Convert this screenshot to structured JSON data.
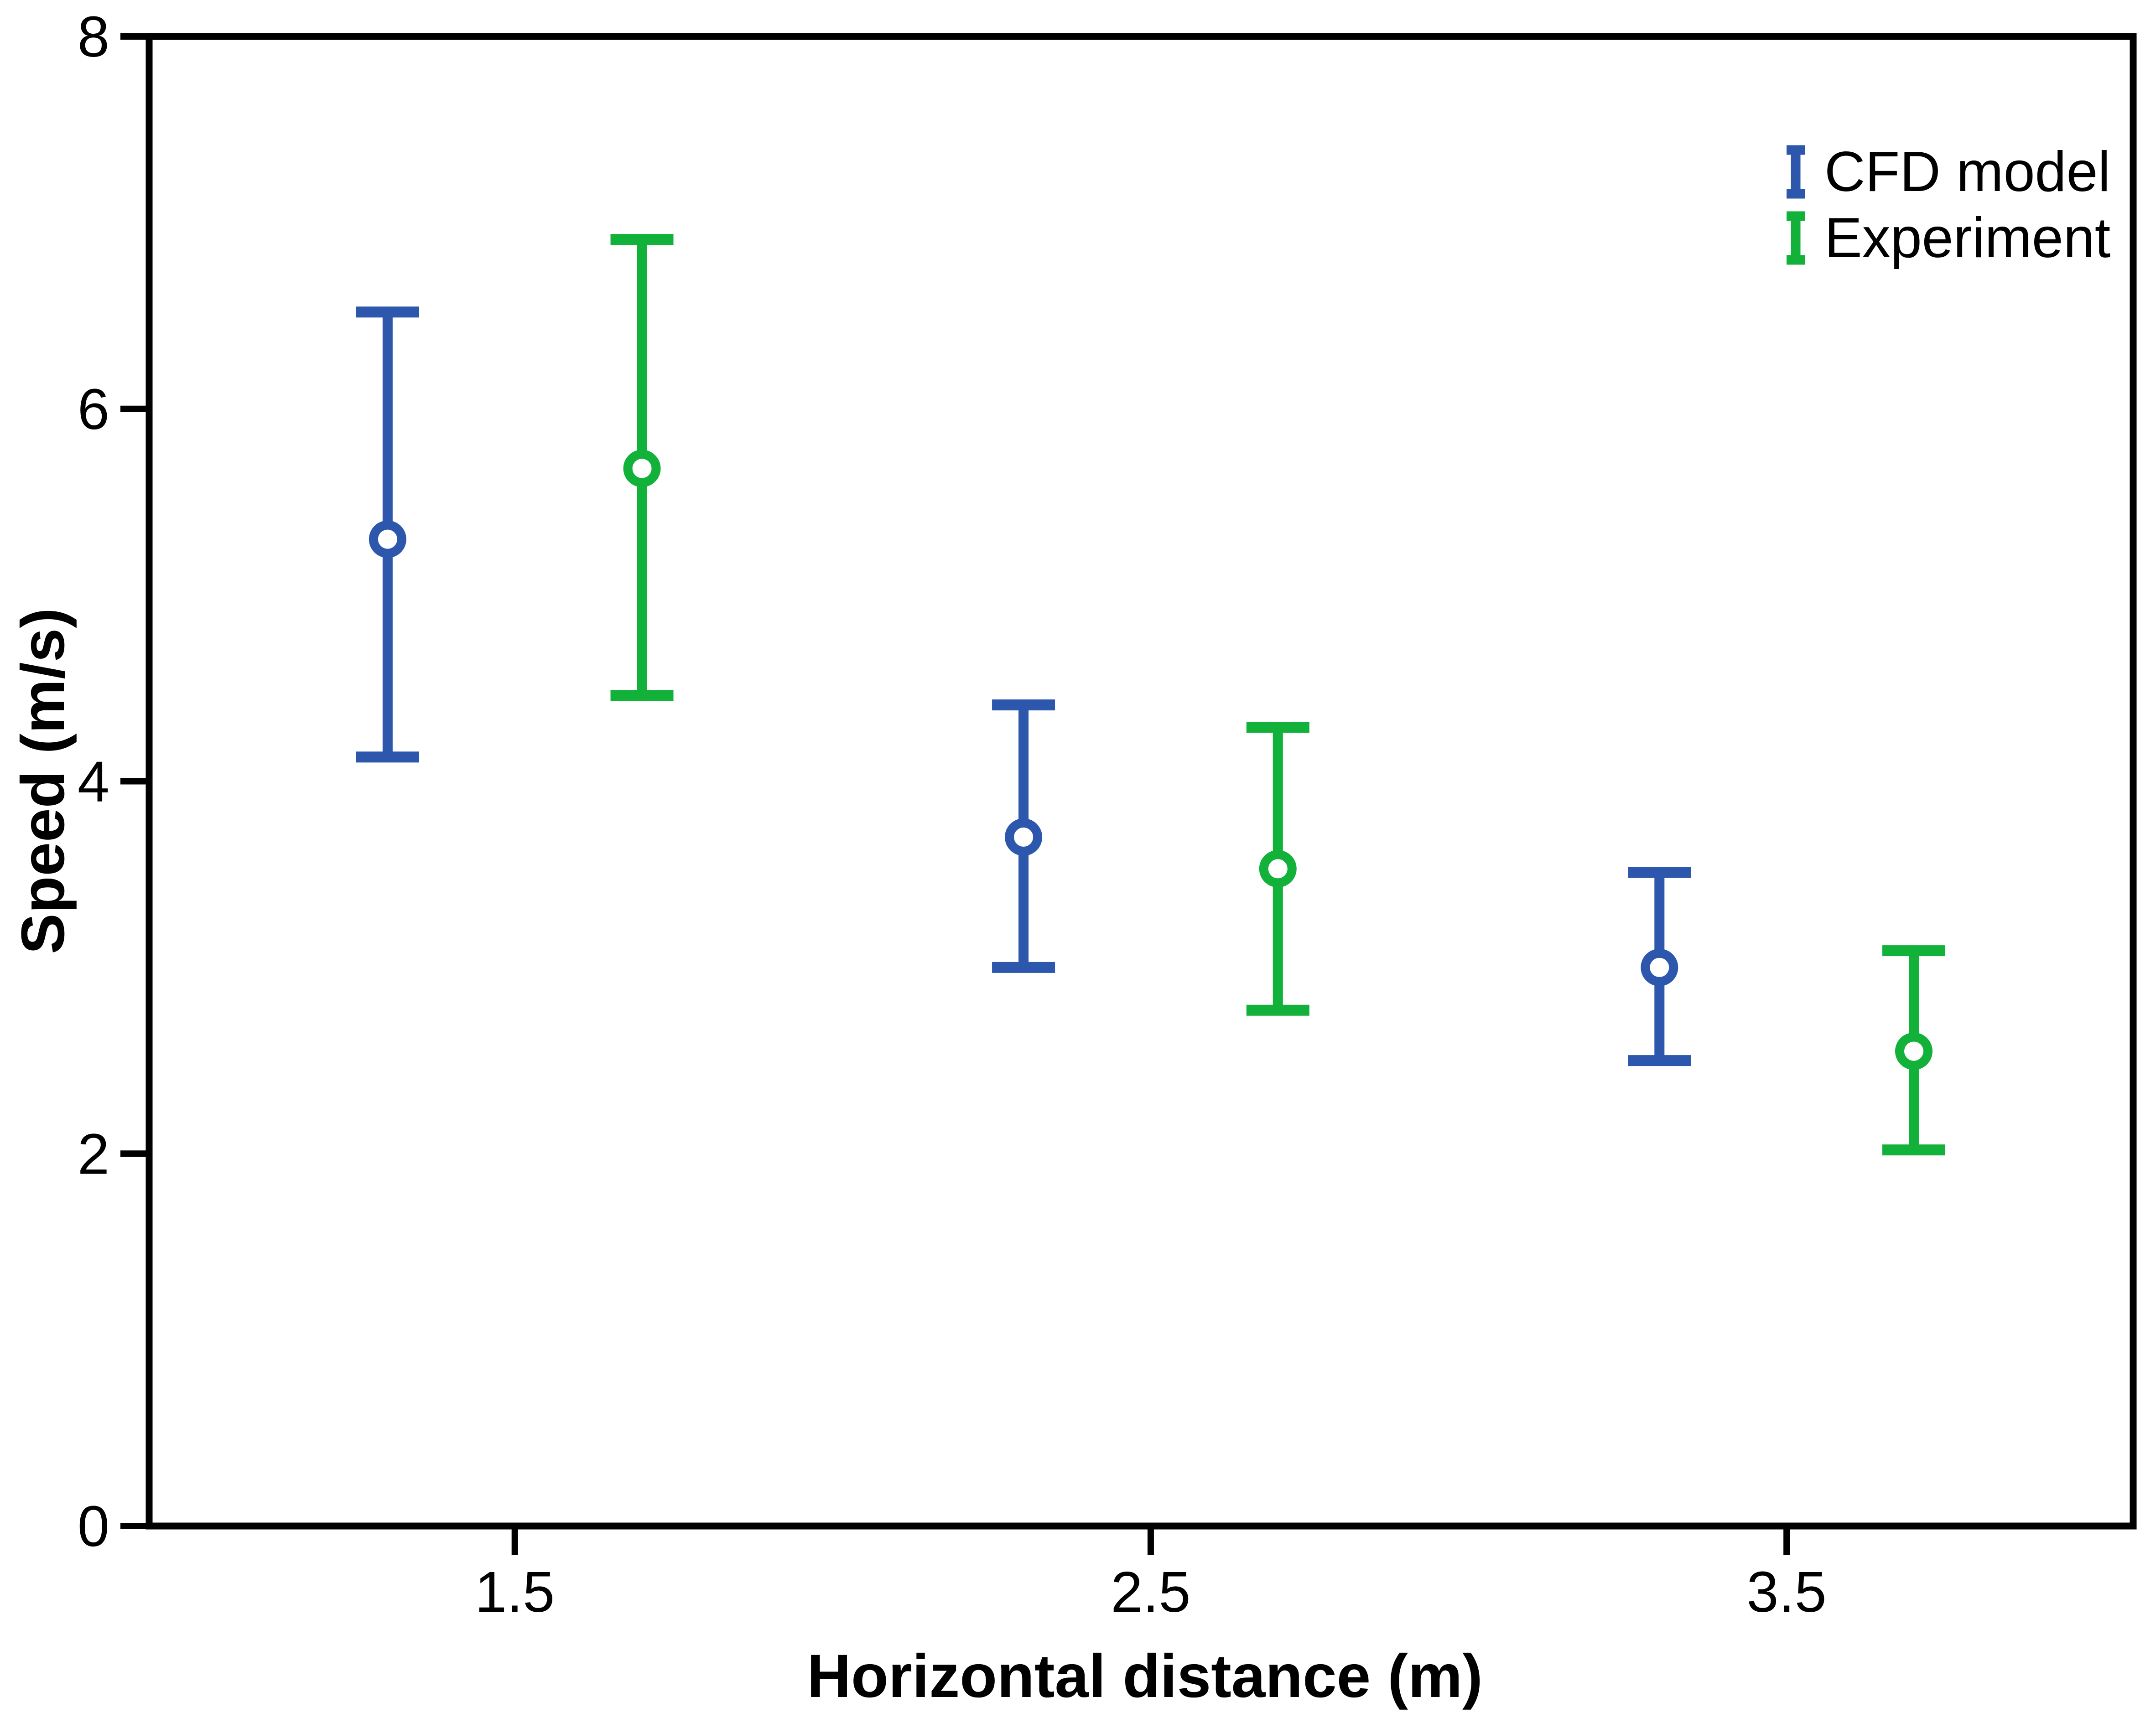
{
  "figure": {
    "background": "#FFFFFF",
    "frame_color": "#000000",
    "text_color": "#000000"
  },
  "chart_data": {
    "type": "scatter-errorbar",
    "title": "",
    "xlabel": "Horizontal distance (m)",
    "ylabel": "Speed (m/s)",
    "xlim": [
      0.925,
      4.045
    ],
    "ylim": [
      0,
      8
    ],
    "grid": false,
    "legend_position": "upper-right",
    "marker": "open-circle",
    "xticks": [
      {
        "value": 1.5,
        "label": "1.5"
      },
      {
        "value": 2.5,
        "label": "2.5"
      },
      {
        "value": 3.5,
        "label": "3.5"
      }
    ],
    "yticks": [
      {
        "value": 0,
        "label": "0"
      },
      {
        "value": 2,
        "label": "2"
      },
      {
        "value": 4,
        "label": "4"
      },
      {
        "value": 6,
        "label": "6"
      },
      {
        "value": 8,
        "label": "8"
      }
    ],
    "series": [
      {
        "name": "CFD model",
        "color": "#2C57AC",
        "points": [
          {
            "x": 1.3,
            "y": 5.3,
            "y_low": 4.13,
            "y_high": 6.52
          },
          {
            "x": 2.3,
            "y": 3.7,
            "y_low": 3.0,
            "y_high": 4.41
          },
          {
            "x": 3.3,
            "y": 3.0,
            "y_low": 2.5,
            "y_high": 3.51
          }
        ]
      },
      {
        "name": "Experiment",
        "color": "#12B13A",
        "points": [
          {
            "x": 1.7,
            "y": 5.68,
            "y_low": 4.46,
            "y_high": 6.91
          },
          {
            "x": 2.7,
            "y": 3.53,
            "y_low": 2.77,
            "y_high": 4.29
          },
          {
            "x": 3.7,
            "y": 2.55,
            "y_low": 2.02,
            "y_high": 3.09
          }
        ]
      }
    ]
  },
  "legend": {
    "entries": [
      {
        "label": "CFD model",
        "color": "#2C57AC"
      },
      {
        "label": "Experiment",
        "color": "#12B13A"
      }
    ]
  }
}
